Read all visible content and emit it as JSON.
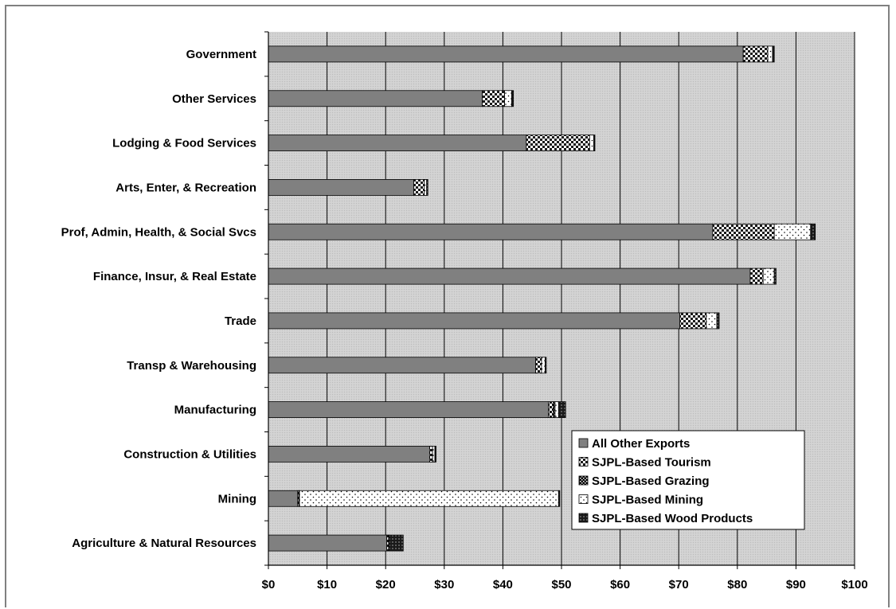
{
  "chart_data": {
    "type": "bar",
    "orientation": "horizontal",
    "stacked": true,
    "title": "",
    "xlabel": "",
    "ylabel": "",
    "xlim": [
      0,
      100
    ],
    "x_ticks": [
      0,
      10,
      20,
      30,
      40,
      50,
      60,
      70,
      80,
      90,
      100
    ],
    "x_tick_labels": [
      "$0",
      "$10",
      "$20",
      "$30",
      "$40",
      "$50",
      "$60",
      "$70",
      "$80",
      "$90",
      "$100"
    ],
    "grid": true,
    "legend_position": "bottom-right",
    "categories": [
      "Government",
      "Other Services",
      "Lodging & Food Services",
      "Arts, Enter, & Recreation",
      "Prof, Admin, Health, & Social Svcs",
      "Finance, Insur, & Real Estate",
      "Trade",
      "Transp & Warehousing",
      "Manufacturing",
      "Construction & Utilities",
      "Mining",
      "Agriculture & Natural Resources"
    ],
    "series": [
      {
        "name": "All Other Exports",
        "pattern": "solid-gray",
        "color": "#808080",
        "values": [
          81,
          36.5,
          44,
          24.8,
          75.8,
          82.2,
          70.2,
          45.6,
          47.8,
          27.5,
          5,
          20.2
        ]
      },
      {
        "name": "SJPL-Based Tourism",
        "pattern": "checker",
        "color": "#404040",
        "values": [
          4.2,
          3.8,
          10.8,
          1.8,
          10.5,
          2.2,
          4.5,
          1,
          0.8,
          0.5,
          0.2,
          0.3
        ]
      },
      {
        "name": "SJPL-Based Grazing",
        "pattern": "dark-checker",
        "color": "#202020",
        "values": [
          0,
          0,
          0,
          0,
          0,
          0,
          0,
          0,
          0.3,
          0,
          0.1,
          0
        ]
      },
      {
        "name": "SJPL-Based Mining",
        "pattern": "white-dotted",
        "color": "#ffffff",
        "values": [
          0.8,
          1.2,
          0.7,
          0.4,
          6.2,
          1.9,
          1.8,
          0.6,
          0.6,
          0.4,
          44.2,
          0.1
        ]
      },
      {
        "name": "SJPL-Based Wood Products",
        "pattern": "dark-grid",
        "color": "#303030",
        "values": [
          0.3,
          0.3,
          0.2,
          0.2,
          0.8,
          0.3,
          0.4,
          0.2,
          1.2,
          0.2,
          0.2,
          2.4
        ]
      }
    ]
  }
}
